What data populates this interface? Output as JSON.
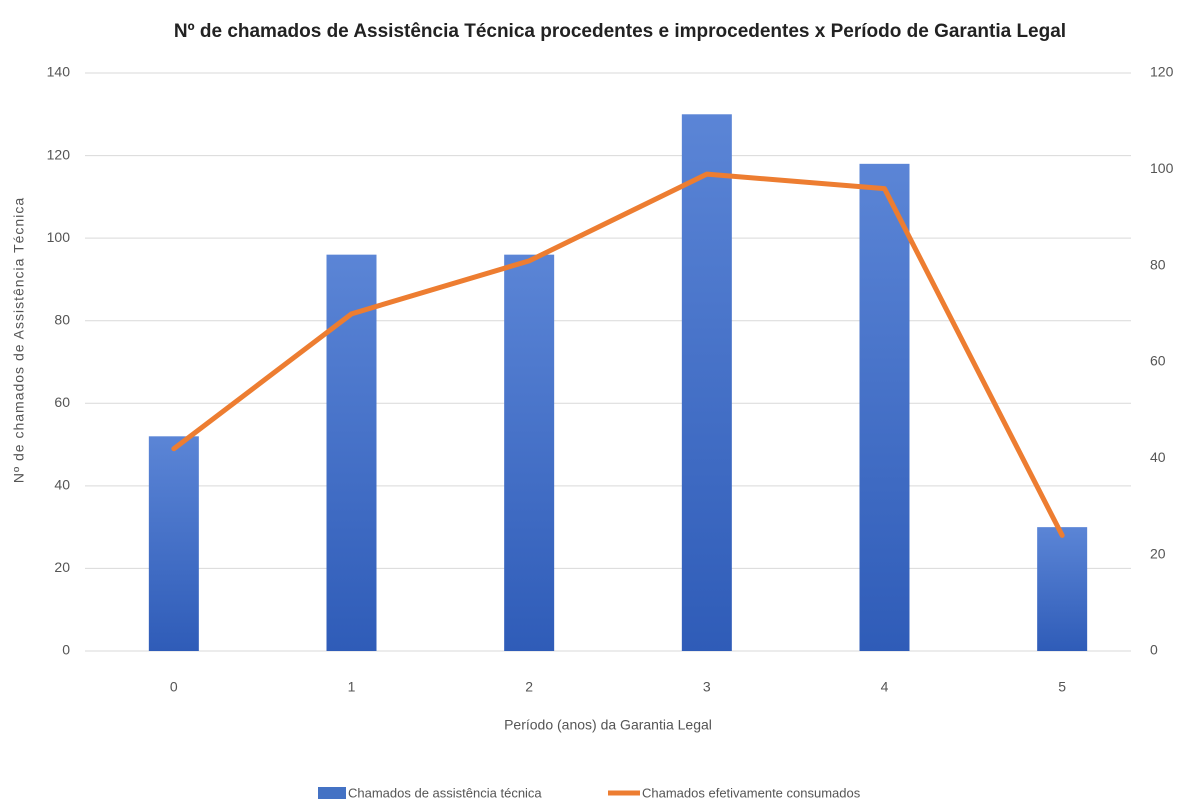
{
  "chart_data": {
    "type": "bar",
    "title": "Nº de chamados de Assistência Técnica procedentes e improcedentes x Período de Garantia Legal",
    "x_label": "Período (anos) da Garantia Legal",
    "y_label": "Nº de chamados de Assistência Técnica",
    "categories": [
      "0",
      "1",
      "2",
      "3",
      "4",
      "5"
    ],
    "series": [
      {
        "name": "Chamados de assistência técnica",
        "type": "bar",
        "color": "#4472c4",
        "values": [
          52,
          96,
          96,
          130,
          118,
          30
        ]
      },
      {
        "name": "Chamados efetivamente consumados",
        "type": "line",
        "axis": "y2",
        "color": "#ed7d31",
        "values": [
          42,
          70,
          81,
          99,
          96,
          24
        ]
      }
    ],
    "ylim": [
      0,
      140
    ],
    "yticks": [
      0,
      20,
      40,
      60,
      80,
      100,
      120,
      140
    ],
    "y2lim": [
      0,
      120
    ],
    "y2ticks": [
      0,
      20,
      40,
      60,
      80,
      100,
      120
    ],
    "grid": true,
    "legend": "bottom"
  }
}
